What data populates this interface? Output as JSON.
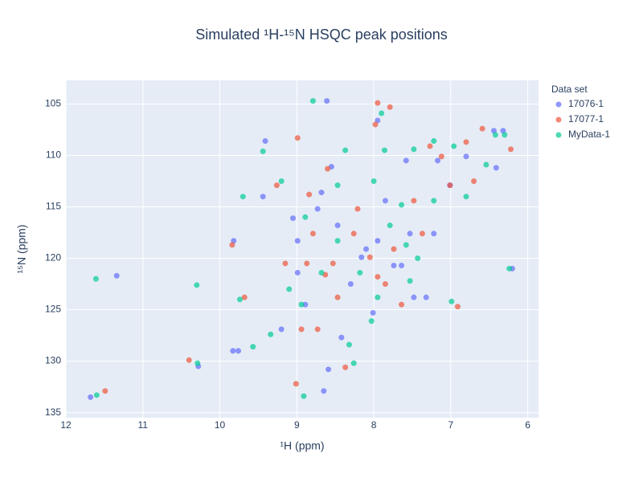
{
  "chart_data": {
    "type": "scatter",
    "title": "Simulated ¹H-¹⁵N HSQC peak positions",
    "x_label": "¹H (ppm)",
    "y_label": "¹⁵N (ppm)",
    "legend_title": "Data set",
    "legend_position": "right",
    "grid": true,
    "xlim": [
      12,
      5.86
    ],
    "ylim": [
      135.5,
      102.7
    ],
    "xticks": [
      12,
      11,
      10,
      9,
      8,
      7,
      6
    ],
    "yticks": [
      105,
      110,
      115,
      120,
      125,
      130,
      135
    ],
    "series": [
      {
        "name": "17076-1",
        "color": "#636efa",
        "x": [
          11.68,
          11.34,
          10.28,
          9.83,
          9.76,
          9.82,
          9.41,
          9.44,
          9.05,
          8.61,
          8.55,
          8.65,
          8.59,
          8.89,
          8.3,
          8.16,
          8.01,
          7.95,
          7.74,
          7.53,
          7.32,
          7.17,
          7.01,
          6.8,
          6.44,
          6.32,
          6.41,
          6.2,
          8.68,
          8.73,
          8.47,
          7.85,
          7.64,
          7.48,
          8.99,
          9.2,
          8.42,
          8.99,
          8.1,
          7.22,
          7.58,
          7.95
        ],
        "values": [
          133.5,
          121.7,
          130.5,
          129.0,
          129.0,
          118.3,
          108.6,
          114.0,
          116.1,
          104.7,
          111.1,
          132.9,
          130.8,
          124.5,
          122.5,
          119.9,
          125.3,
          118.3,
          120.7,
          117.6,
          123.8,
          110.5,
          112.9,
          110.1,
          107.6,
          107.6,
          111.2,
          121.0,
          113.6,
          115.2,
          116.8,
          114.4,
          120.7,
          123.8,
          118.3,
          126.9,
          127.7,
          121.4,
          119.1,
          117.6,
          110.5,
          106.6
        ]
      },
      {
        "name": "17077-1",
        "color": "#ef553b",
        "x": [
          11.49,
          10.4,
          9.68,
          9.84,
          8.99,
          8.84,
          8.6,
          9.26,
          7.95,
          7.98,
          7.79,
          7.27,
          7.12,
          6.59,
          6.22,
          6.91,
          9.01,
          8.87,
          8.73,
          8.37,
          8.94,
          8.47,
          8.05,
          7.74,
          7.48,
          7.01,
          7.37,
          8.79,
          8.63,
          8.26,
          7.85,
          9.15,
          8.53,
          8.21,
          7.64,
          6.8,
          6.7,
          7.95
        ],
        "values": [
          132.9,
          129.9,
          123.8,
          118.7,
          108.3,
          113.8,
          111.3,
          112.9,
          104.9,
          107.0,
          105.3,
          109.1,
          110.1,
          107.4,
          109.4,
          124.7,
          132.2,
          120.5,
          126.9,
          130.6,
          126.9,
          123.8,
          119.9,
          119.1,
          114.4,
          112.9,
          117.6,
          117.6,
          121.6,
          117.6,
          122.5,
          120.5,
          120.5,
          115.2,
          124.5,
          108.7,
          112.5,
          121.8
        ]
      },
      {
        "name": "MyData-1",
        "color": "#00cc96",
        "x": [
          11.61,
          10.3,
          10.29,
          11.6,
          9.7,
          9.74,
          9.44,
          9.2,
          9.57,
          9.34,
          8.79,
          8.91,
          8.37,
          7.9,
          7.86,
          7.48,
          7.22,
          6.96,
          6.54,
          6.42,
          6.3,
          6.24,
          6.99,
          7.43,
          7.58,
          7.79,
          8.03,
          8.32,
          8.26,
          8.68,
          8.89,
          8.47,
          9.1,
          8.18,
          7.95,
          7.64,
          7.22,
          6.8,
          8.0,
          8.47,
          8.94,
          7.53
        ],
        "values": [
          122.0,
          122.6,
          130.2,
          133.3,
          114.0,
          124.0,
          109.6,
          112.5,
          128.6,
          127.4,
          104.7,
          133.4,
          109.5,
          105.9,
          109.5,
          109.4,
          108.6,
          109.1,
          110.9,
          108.0,
          108.0,
          121.0,
          124.2,
          120.0,
          118.7,
          116.8,
          126.1,
          128.4,
          130.2,
          121.4,
          116.0,
          118.3,
          123.0,
          121.4,
          123.8,
          114.8,
          114.4,
          114.0,
          112.5,
          112.9,
          124.5,
          122.2
        ]
      }
    ]
  }
}
